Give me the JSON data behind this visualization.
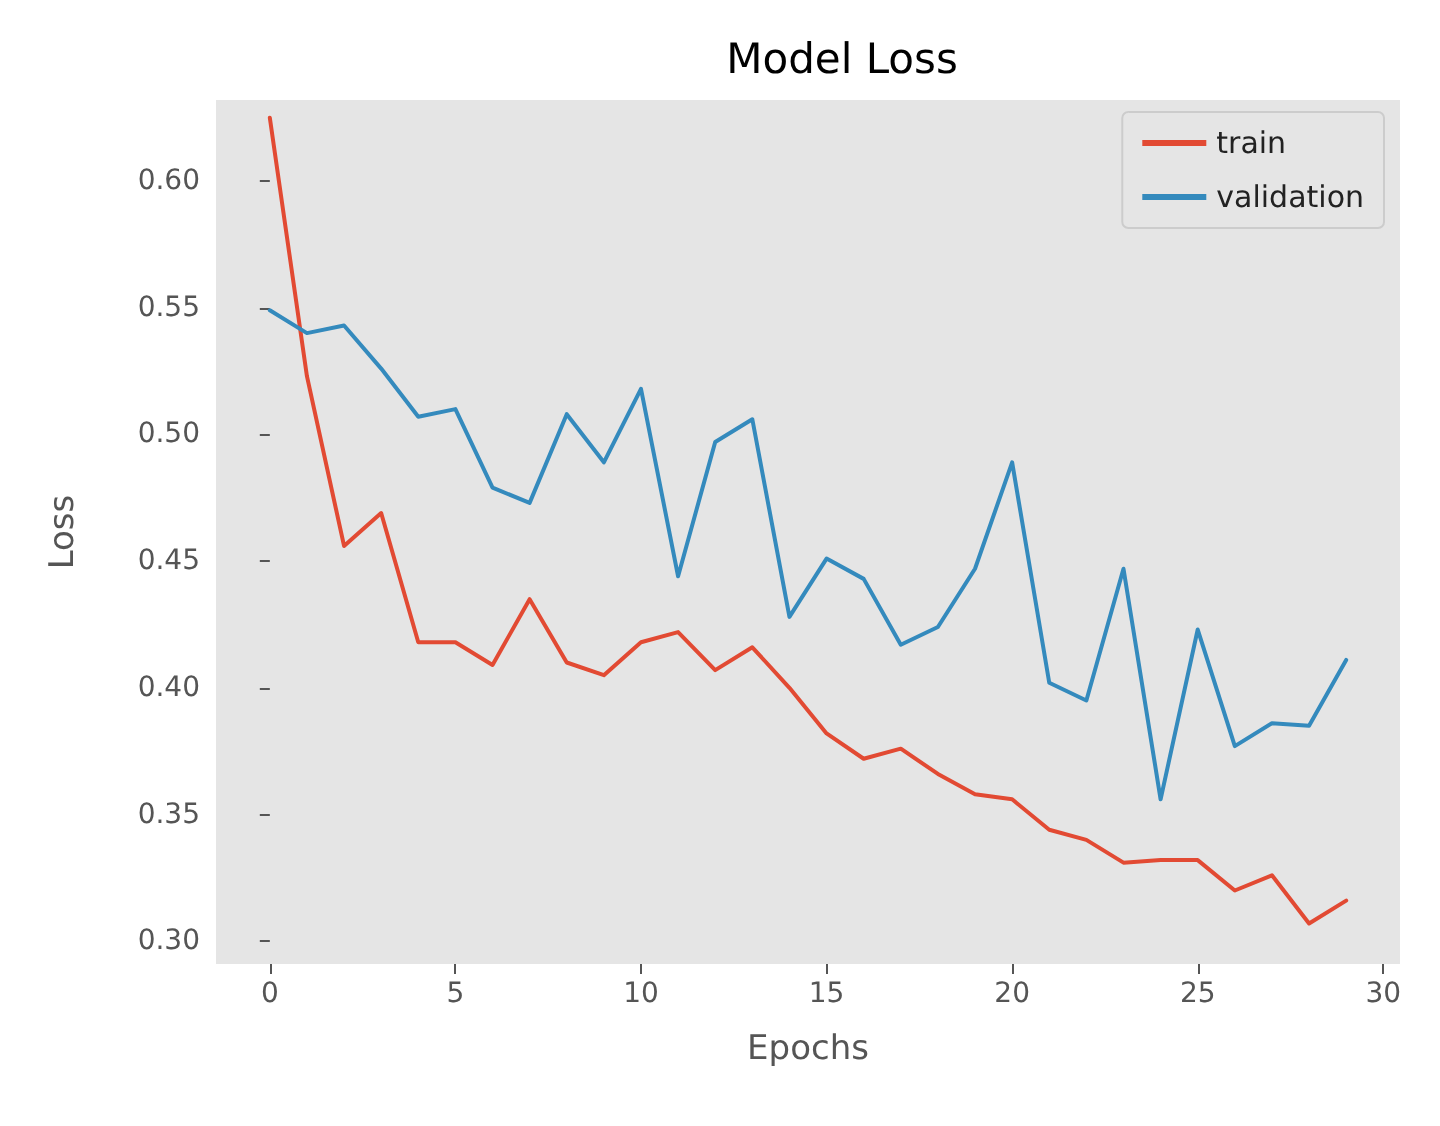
{
  "chart_data": {
    "type": "line",
    "title": "Model Loss",
    "xlabel": "Epochs",
    "ylabel": "Loss",
    "x": [
      0,
      1,
      2,
      3,
      4,
      5,
      6,
      7,
      8,
      9,
      10,
      11,
      12,
      13,
      14,
      15,
      16,
      17,
      18,
      19,
      20,
      21,
      22,
      23,
      24,
      25,
      26,
      27,
      28,
      29
    ],
    "series": [
      {
        "name": "train",
        "color": "#e24a33",
        "values": [
          0.625,
          0.523,
          0.456,
          0.469,
          0.418,
          0.418,
          0.409,
          0.435,
          0.41,
          0.405,
          0.418,
          0.422,
          0.407,
          0.416,
          0.4,
          0.382,
          0.372,
          0.376,
          0.366,
          0.358,
          0.356,
          0.344,
          0.34,
          0.331,
          0.332,
          0.332,
          0.32,
          0.326,
          0.307,
          0.316
        ]
      },
      {
        "name": "validation",
        "color": "#348abd",
        "values": [
          0.549,
          0.54,
          0.543,
          0.526,
          0.507,
          0.51,
          0.479,
          0.473,
          0.508,
          0.489,
          0.518,
          0.444,
          0.497,
          0.506,
          0.428,
          0.451,
          0.443,
          0.417,
          0.424,
          0.447,
          0.489,
          0.402,
          0.395,
          0.447,
          0.356,
          0.423,
          0.377,
          0.386,
          0.385,
          0.411
        ]
      }
    ],
    "xlim": [
      -1.45,
      30.45
    ],
    "xticks": [
      0,
      5,
      10,
      15,
      20,
      25,
      30
    ],
    "ylim": [
      0.291,
      0.632
    ],
    "yticks": [
      {
        "value": 0.3,
        "label": "0.30"
      },
      {
        "value": 0.35,
        "label": "0.35"
      },
      {
        "value": 0.4,
        "label": "0.40"
      },
      {
        "value": 0.45,
        "label": "0.45"
      },
      {
        "value": 0.5,
        "label": "0.50"
      },
      {
        "value": 0.55,
        "label": "0.55"
      },
      {
        "value": 0.6,
        "label": "0.60"
      }
    ],
    "grid": false,
    "legend": "top right",
    "marker": "none",
    "line_style": "solid"
  }
}
